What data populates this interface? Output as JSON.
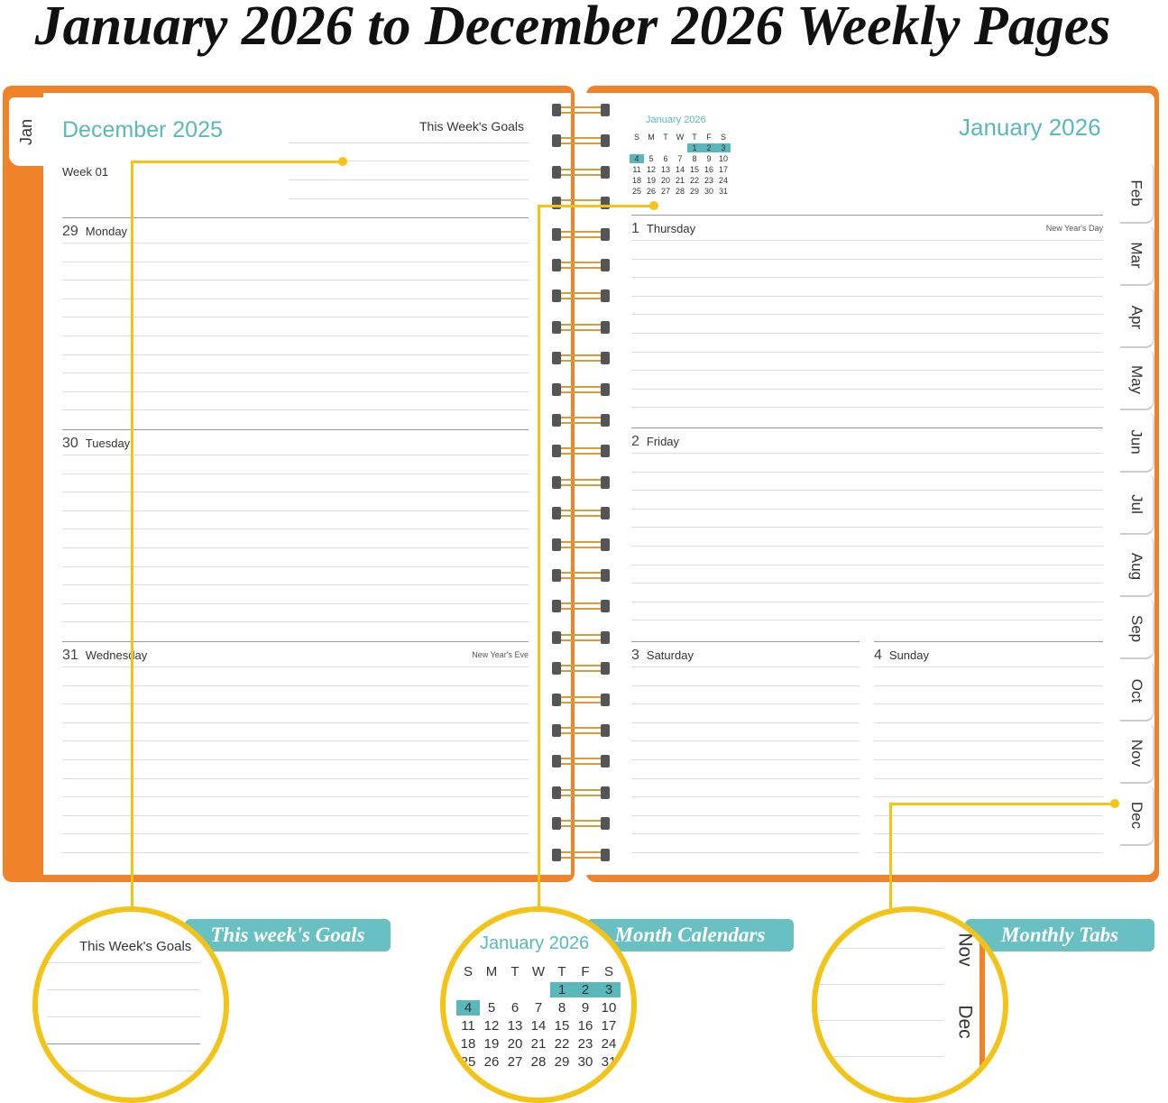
{
  "title": "January 2026 to December 2026 Weekly Pages",
  "colors": {
    "cover": "#f0832a",
    "accent": "#5ab8bd",
    "callout": "#f3c316"
  },
  "left_page": {
    "month": "December 2025",
    "goals_label": "This Week's Goals",
    "week": "Week 01",
    "tab": "Jan",
    "days": [
      {
        "num": "29",
        "name": "Monday",
        "holiday": ""
      },
      {
        "num": "30",
        "name": "Tuesday",
        "holiday": ""
      },
      {
        "num": "31",
        "name": "Wednesday",
        "holiday": "New Year's Eve"
      }
    ]
  },
  "right_page": {
    "month": "January 2026",
    "mini_calendar": {
      "title": "January 2026",
      "weekdays": [
        "S",
        "M",
        "T",
        "W",
        "T",
        "F",
        "S"
      ],
      "days": [
        "",
        "",
        "",
        "",
        "1",
        "2",
        "3",
        "4",
        "5",
        "6",
        "7",
        "8",
        "9",
        "10",
        "11",
        "12",
        "13",
        "14",
        "15",
        "16",
        "17",
        "18",
        "19",
        "20",
        "21",
        "22",
        "23",
        "24",
        "25",
        "26",
        "27",
        "28",
        "29",
        "30",
        "31"
      ],
      "highlighted": [
        "1",
        "2",
        "3",
        "4"
      ]
    },
    "days": [
      {
        "num": "1",
        "name": "Thursday",
        "holiday": "New Year's Day"
      },
      {
        "num": "2",
        "name": "Friday",
        "holiday": ""
      },
      {
        "num": "3",
        "name": "Saturday",
        "holiday": ""
      },
      {
        "num": "4",
        "name": "Sunday",
        "holiday": ""
      }
    ],
    "tabs": [
      "Feb",
      "Mar",
      "Apr",
      "May",
      "Jun",
      "Jul",
      "Aug",
      "Sep",
      "Oct",
      "Nov",
      "Dec"
    ]
  },
  "features": [
    {
      "label": "This week's Goals",
      "zoom_text": "This Week's Goals"
    },
    {
      "label": "Month Calendars",
      "zoom_text": "January 2026"
    },
    {
      "label": "Monthly Tabs",
      "zoom_tabs": [
        "Nov",
        "Dec"
      ]
    }
  ]
}
